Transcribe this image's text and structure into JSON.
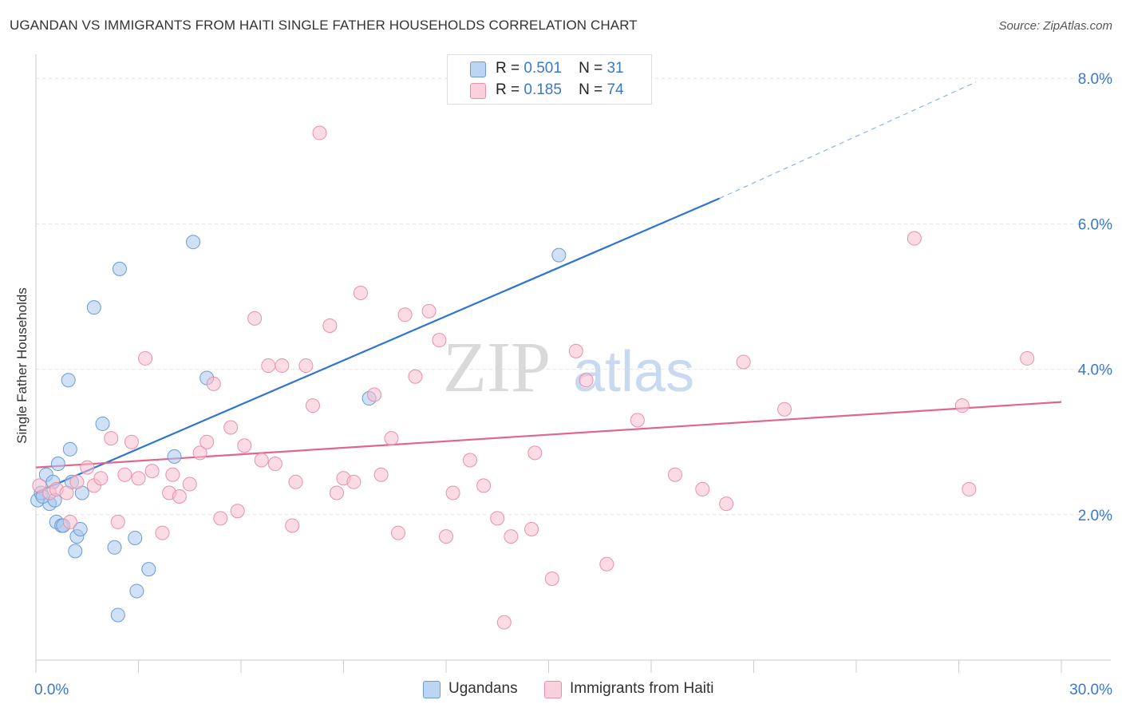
{
  "title": "UGANDAN VS IMMIGRANTS FROM HAITI SINGLE FATHER HOUSEHOLDS CORRELATION CHART",
  "source": "Source: ZipAtlas.com",
  "watermark": {
    "part1": "ZIP",
    "part2": "atlas"
  },
  "legend": {
    "rows": [
      {
        "r_label": "R =",
        "r_value": "0.501",
        "n_label": "N =",
        "n_value": "31",
        "color": "#a9c8ef",
        "stroke": "#6a9bd8"
      },
      {
        "r_label": "R =",
        "r_value": "0.185",
        "n_label": "N =",
        "n_value": "74",
        "color": "#f7bfd0",
        "stroke": "#e890ab"
      }
    ]
  },
  "bottom_legend": [
    "Ugandans",
    "Immigrants from Haiti"
  ],
  "chart_data": {
    "type": "scatter",
    "title": "UGANDAN VS IMMIGRANTS FROM HAITI SINGLE FATHER HOUSEHOLDS CORRELATION CHART",
    "xlabel": "",
    "ylabel": "Single Father Households",
    "xlim": [
      0,
      30
    ],
    "ylim": [
      0,
      8.2
    ],
    "x_tick_labels": [
      "0.0%",
      "30.0%"
    ],
    "y_ticks": [
      2,
      4,
      6,
      8
    ],
    "y_tick_labels": [
      "2.0%",
      "4.0%",
      "6.0%",
      "8.0%"
    ],
    "grid": true,
    "series": [
      {
        "name": "Ugandans",
        "color": "#a9c8ef",
        "stroke": "#6a9bd8",
        "points": [
          [
            0.05,
            2.2
          ],
          [
            0.15,
            2.3
          ],
          [
            0.3,
            2.55
          ],
          [
            0.4,
            2.15
          ],
          [
            0.5,
            2.45
          ],
          [
            0.55,
            2.2
          ],
          [
            0.6,
            1.9
          ],
          [
            0.65,
            2.7
          ],
          [
            0.75,
            1.85
          ],
          [
            0.8,
            1.85
          ],
          [
            0.95,
            3.85
          ],
          [
            1.0,
            2.9
          ],
          [
            1.05,
            2.45
          ],
          [
            1.15,
            1.5
          ],
          [
            1.2,
            1.7
          ],
          [
            1.3,
            1.8
          ],
          [
            1.35,
            2.3
          ],
          [
            1.7,
            4.85
          ],
          [
            1.95,
            3.25
          ],
          [
            2.3,
            1.55
          ],
          [
            2.4,
            0.62
          ],
          [
            2.45,
            5.38
          ],
          [
            2.9,
            1.68
          ],
          [
            2.95,
            0.95
          ],
          [
            3.3,
            1.25
          ],
          [
            4.05,
            2.8
          ],
          [
            4.6,
            5.75
          ],
          [
            5.0,
            3.88
          ],
          [
            9.75,
            3.6
          ],
          [
            15.3,
            5.57
          ],
          [
            0.2,
            2.25
          ]
        ],
        "trend": {
          "x0": 0,
          "y0": 2.3,
          "x1": 20.0,
          "y1": 6.35,
          "dash_x1": 27.5,
          "dash_y1": 7.95
        }
      },
      {
        "name": "Immigrants from Haiti",
        "color": "#f7bfd0",
        "stroke": "#e890ab",
        "points": [
          [
            0.1,
            2.4
          ],
          [
            0.4,
            2.3
          ],
          [
            0.6,
            2.35
          ],
          [
            0.9,
            2.3
          ],
          [
            1.0,
            1.9
          ],
          [
            1.2,
            2.45
          ],
          [
            1.5,
            2.65
          ],
          [
            1.7,
            2.4
          ],
          [
            1.9,
            2.5
          ],
          [
            2.2,
            3.05
          ],
          [
            2.4,
            1.9
          ],
          [
            2.6,
            2.55
          ],
          [
            2.8,
            3.0
          ],
          [
            3.0,
            2.5
          ],
          [
            3.2,
            4.15
          ],
          [
            3.4,
            2.6
          ],
          [
            3.7,
            1.75
          ],
          [
            3.9,
            2.3
          ],
          [
            4.0,
            2.55
          ],
          [
            4.2,
            2.25
          ],
          [
            4.5,
            2.42
          ],
          [
            4.8,
            2.85
          ],
          [
            5.0,
            3.0
          ],
          [
            5.2,
            3.8
          ],
          [
            5.4,
            1.95
          ],
          [
            5.7,
            3.2
          ],
          [
            5.9,
            2.05
          ],
          [
            6.1,
            2.95
          ],
          [
            6.4,
            4.7
          ],
          [
            6.6,
            2.75
          ],
          [
            6.8,
            4.05
          ],
          [
            7.0,
            2.7
          ],
          [
            7.2,
            4.05
          ],
          [
            7.5,
            1.85
          ],
          [
            7.6,
            2.45
          ],
          [
            7.9,
            4.05
          ],
          [
            8.1,
            3.5
          ],
          [
            8.3,
            7.25
          ],
          [
            8.6,
            4.6
          ],
          [
            8.8,
            2.3
          ],
          [
            9.0,
            2.5
          ],
          [
            9.3,
            2.45
          ],
          [
            9.5,
            5.05
          ],
          [
            9.9,
            3.65
          ],
          [
            10.1,
            2.55
          ],
          [
            10.4,
            3.05
          ],
          [
            10.6,
            1.75
          ],
          [
            10.8,
            4.75
          ],
          [
            11.1,
            3.9
          ],
          [
            11.5,
            4.8
          ],
          [
            11.8,
            4.4
          ],
          [
            12.0,
            1.7
          ],
          [
            12.2,
            2.3
          ],
          [
            12.7,
            2.75
          ],
          [
            13.1,
            2.4
          ],
          [
            13.5,
            1.95
          ],
          [
            13.7,
            0.52
          ],
          [
            13.9,
            1.7
          ],
          [
            14.5,
            1.8
          ],
          [
            14.6,
            2.85
          ],
          [
            15.1,
            1.12
          ],
          [
            15.8,
            4.25
          ],
          [
            16.1,
            3.85
          ],
          [
            16.7,
            1.32
          ],
          [
            17.6,
            3.3
          ],
          [
            18.7,
            2.55
          ],
          [
            19.5,
            2.35
          ],
          [
            20.2,
            2.15
          ],
          [
            20.7,
            4.1
          ],
          [
            21.9,
            3.45
          ],
          [
            25.7,
            5.8
          ],
          [
            27.1,
            3.5
          ],
          [
            27.3,
            2.35
          ],
          [
            29.0,
            4.15
          ]
        ],
        "trend": {
          "x0": 0,
          "y0": 2.65,
          "x1": 30.0,
          "y1": 3.55
        }
      }
    ]
  }
}
